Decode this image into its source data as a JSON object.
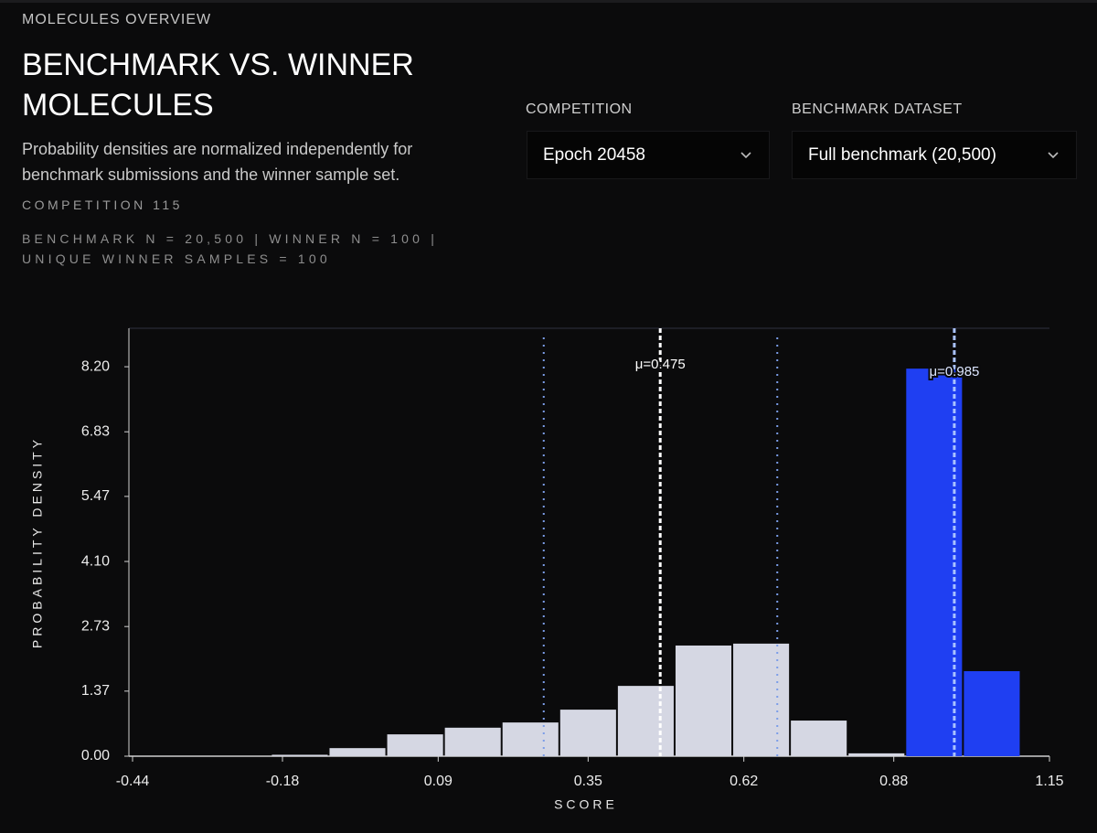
{
  "header": {
    "eyebrow": "MOLECULES OVERVIEW",
    "title": "BENCHMARK VS. WINNER MOLECULES",
    "description": "Probability densities are normalized independently for benchmark submissions and the winner sample set.",
    "competition": "COMPETITION 115",
    "stats": "BENCHMARK N = 20,500 | WINNER N = 100 | UNIQUE WINNER SAMPLES = 100"
  },
  "controls": [
    {
      "label": "COMPETITION",
      "value": "Epoch 20458"
    },
    {
      "label": "BENCHMARK DATASET",
      "value": "Full benchmark (20,500)"
    }
  ],
  "chart_data": {
    "type": "histogram",
    "x_label": "SCORE",
    "y_label": "PROBABILITY DENSITY",
    "bins": [
      -0.2,
      -0.1,
      0,
      0.1,
      0.2,
      0.3,
      0.4,
      0.5,
      0.6,
      0.7,
      0.8,
      0.9,
      1.0,
      1.1
    ],
    "series": [
      {
        "color": "#d5d7e3",
        "values": [
          0.03,
          0.17,
          0.46,
          0.6,
          0.71,
          0.98,
          1.48,
          2.33,
          2.37,
          0.75,
          0.06,
          0,
          0
        ],
        "mean": 0.475,
        "mean_label": "μ=0.475",
        "mean_color": "#ffffff",
        "ref_lines": [
          0.273,
          0.678
        ],
        "ref_color": "#7b9de8"
      },
      {
        "color": "#1f3ff2",
        "values": [
          0,
          0,
          0,
          0,
          0,
          0,
          0,
          0,
          0,
          0,
          0,
          8.16,
          1.79
        ],
        "mean": 0.985,
        "mean_label": "μ=0.985",
        "mean_color": "#a9c2ff"
      }
    ],
    "xlim": [
      -0.44,
      1.15
    ],
    "xticks": [
      -0.44,
      -0.18,
      0.09,
      0.35,
      0.62,
      0.88,
      1.15
    ],
    "ylim": [
      0,
      9.01
    ],
    "yticks": [
      {
        "value": 0,
        "label": "0.00"
      },
      1.37,
      2.73,
      {
        "value": 4.1,
        "label": "4.10"
      },
      5.47,
      6.83,
      {
        "value": 8.2,
        "label": "8.20"
      }
    ],
    "grid": false
  }
}
